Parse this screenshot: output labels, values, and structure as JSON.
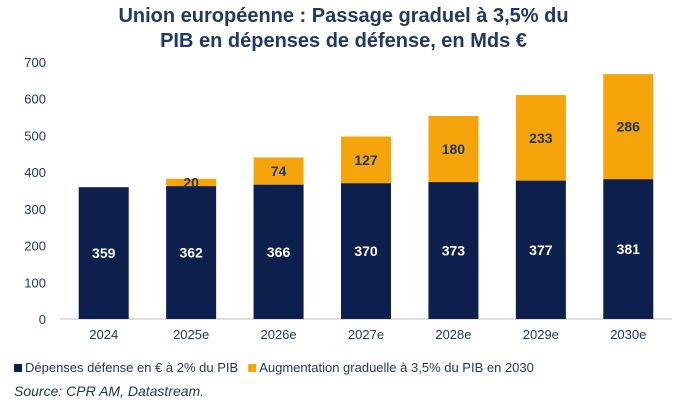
{
  "chart_data": {
    "type": "bar",
    "stacked": true,
    "title_line1": "Union européenne : Passage graduel à 3,5%  du",
    "title_line2": "PIB en dépenses de défense, en Mds €",
    "categories": [
      "2024",
      "2025e",
      "2026e",
      "2027e",
      "2028e",
      "2029e",
      "2030e"
    ],
    "series": [
      {
        "name": "Dépenses défense en € à 2% du PIB",
        "color": "#0c1f4d",
        "label_color": "#ffffff",
        "values": [
          359,
          362,
          366,
          370,
          373,
          377,
          381
        ]
      },
      {
        "name": "Augmentation graduelle à 3,5% du PIB en 2030",
        "color": "#f5a50a",
        "label_color": "#1f3864",
        "values": [
          0,
          20,
          74,
          127,
          180,
          233,
          286
        ]
      }
    ],
    "ylim": [
      0,
      700
    ],
    "yticks": [
      "0",
      "100",
      "200",
      "300",
      "400",
      "500",
      "600",
      "700"
    ],
    "grid": false,
    "legend_position": "bottom"
  },
  "source": "Source: CPR AM, Datastream."
}
